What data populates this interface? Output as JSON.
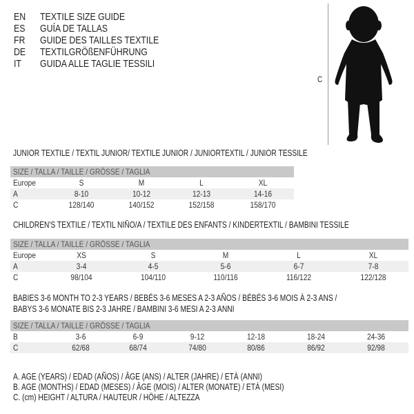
{
  "languages": [
    {
      "code": "EN",
      "name": "TEXTILE SIZE GUIDE"
    },
    {
      "code": "ES",
      "name": "GUÍA DE TALLAS"
    },
    {
      "code": "FR",
      "name": "GUIDE DES TAILLES TEXTILE"
    },
    {
      "code": "DE",
      "name": "TEXTILGRÖßENFÜHRUNG"
    },
    {
      "code": "IT",
      "name": "GUIDA ALLE TAGLIE TESSILI"
    }
  ],
  "figure_label": "C",
  "junior": {
    "title": "JUNIOR TEXTILE / TEXTIL JUNIOR/ TEXTILE JUNIOR / JUNIORTEXTIL / JUNIOR TESSILE",
    "header": "SIZE / TALLA / TAILLE / GRÖSSE / TAGLIA",
    "rows": [
      {
        "label": "Europe",
        "values": [
          "S",
          "M",
          "L",
          "XL"
        ]
      },
      {
        "label": "A",
        "values": [
          "8-10",
          "10-12",
          "12-13",
          "14-16"
        ]
      },
      {
        "label": "C",
        "values": [
          "128/140",
          "140/152",
          "152/158",
          "158/170"
        ]
      }
    ]
  },
  "children": {
    "title": "CHILDREN'S TEXTILE / TEXTIL NIÑO/A / TEXTILE DES ENFANTS / KINDERTEXTIL / BAMBINI TESSILE",
    "header": "SIZE / TALLA / TAILLE / GRÖSSE / TAGLIA",
    "rows": [
      {
        "label": "Europe",
        "values": [
          "XS",
          "S",
          "M",
          "L",
          "XL"
        ]
      },
      {
        "label": "A",
        "values": [
          "3-4",
          "4-5",
          "5-6",
          "6-7",
          "7-8"
        ]
      },
      {
        "label": "C",
        "values": [
          "98/104",
          "104/110",
          "110/116",
          "116/122",
          "122/128"
        ]
      }
    ]
  },
  "babies": {
    "title_line1": "BABIES 3-6 MONTH TO 2-3 YEARS / BEBÉS 3-6 MESES A 2-3 AÑOS / BÉBÉS 3-6 MOIS À 2-3 ANS /",
    "title_line2": "BABYS 3-6 MONATE BIS 2-3 JAHRE / BAMBINI 3-6 MESI A 2-3 ANNI",
    "header": "SIZE / TALLA / TAILLE / GRÖSSE / TAGLIA",
    "rows": [
      {
        "label": "B",
        "values": [
          "3-6",
          "6-9",
          "9-12",
          "12-18",
          "18-24",
          "24-36"
        ]
      },
      {
        "label": "C",
        "values": [
          "62/68",
          "68/74",
          "74/80",
          "80/86",
          "86/92",
          "92/98"
        ]
      }
    ]
  },
  "notes": [
    "A. AGE (YEARS) / EDAD (AÑOS) / ÂGE (ANS) / ALTER (JAHRE) / ETÀ (ANNI)",
    "B. AGE (MONTHS) / EDAD (MESES) / ÂGE (MOIS) / ALTER (MONATE) / ETÀ (MESI)",
    "C. (cm) HEIGHT / ALTURA / HAUTEUR / HÖHE / ALTEZZA"
  ]
}
